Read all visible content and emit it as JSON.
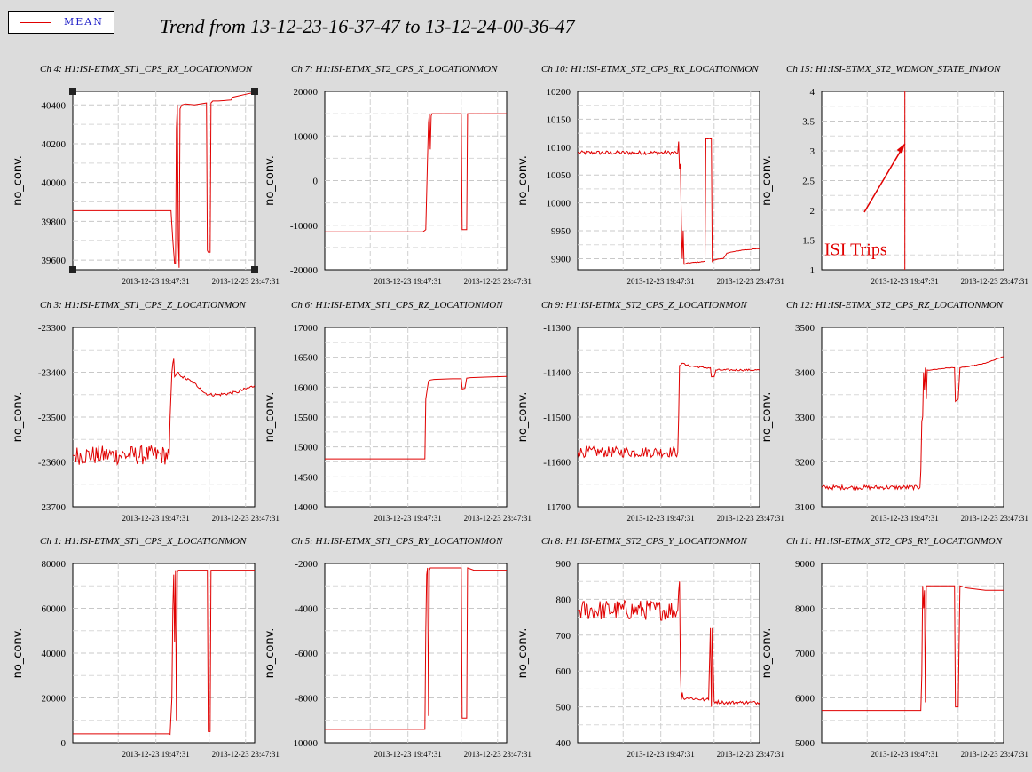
{
  "legend": {
    "label": "MEAN",
    "color": "#e00000"
  },
  "title": "Trend from 13-12-23-16-37-47 to 13-12-24-00-36-47",
  "ylabel": "no_conv.",
  "x_ticks": [
    "2013-12-23 19:47:31",
    "2013-12-23 23:47:31"
  ],
  "annotation": {
    "text": "ISI Trips",
    "chart": 3
  },
  "chart_data": [
    {
      "type": "line",
      "title": "Ch 4: H1:ISI-ETMX_ST1_CPS_RX_LOCATIONMON",
      "ylabel": "no_conv.",
      "ylim": [
        39550,
        40470
      ],
      "yticks": [
        39600,
        39800,
        40000,
        40200,
        40400
      ],
      "xticks": [
        "2013-12-23 19:47:31",
        "2013-12-23 23:47:31"
      ],
      "series": [
        {
          "color": "#e00000",
          "noise": 0,
          "x": [
            0,
            0.53,
            0.54,
            0.55,
            0.56,
            0.565,
            0.57,
            0.575,
            0.58,
            0.585,
            0.59,
            0.6,
            0.62,
            0.67,
            0.7,
            0.735,
            0.74,
            0.745,
            0.755,
            0.76,
            0.765,
            0.77,
            0.8,
            0.87,
            0.88,
            0.95,
            1
          ],
          "y": [
            39855,
            39855,
            39855,
            39700,
            39580,
            39580,
            40280,
            40400,
            39700,
            39560,
            40380,
            40400,
            40405,
            40400,
            40405,
            40410,
            39650,
            39640,
            39640,
            40410,
            40415,
            40420,
            40420,
            40425,
            40440,
            40455,
            40465
          ]
        }
      ]
    },
    {
      "type": "line",
      "title": "Ch 7: H1:ISI-ETMX_ST2_CPS_X_LOCATIONMON",
      "ylabel": "no_conv.",
      "ylim": [
        -20000,
        20000
      ],
      "yticks": [
        -20000,
        -10000,
        0,
        10000,
        20000
      ],
      "xticks": [
        "2013-12-23 19:47:31",
        "2013-12-23 23:47:31"
      ],
      "series": [
        {
          "color": "#e00000",
          "noise": 0,
          "x": [
            0,
            0.54,
            0.555,
            0.565,
            0.57,
            0.575,
            0.58,
            0.585,
            0.59,
            0.6,
            0.7,
            0.75,
            0.755,
            0.78,
            0.785,
            0.8,
            0.9,
            1
          ],
          "y": [
            -11500,
            -11500,
            -11000,
            5000,
            13000,
            15000,
            7000,
            14500,
            15000,
            15000,
            15000,
            15000,
            -11000,
            -11000,
            15000,
            15000,
            15000,
            15000
          ]
        }
      ]
    },
    {
      "type": "line",
      "title": "Ch 10: H1:ISI-ETMX_ST2_CPS_RX_LOCATIONMON",
      "ylabel": "no_conv.",
      "ylim": [
        9880,
        10200
      ],
      "yticks": [
        9900,
        9950,
        10000,
        10050,
        10100,
        10150,
        10200
      ],
      "xticks": [
        "2013-12-23 19:47:31",
        "2013-12-23 23:47:31"
      ],
      "series": [
        {
          "color": "#e00000",
          "noise": 1.5,
          "x": [
            0,
            0.55,
            0.555,
            0.56,
            0.565,
            0.57,
            0.575,
            0.58,
            0.585,
            0.59,
            0.6,
            0.7,
            0.705,
            0.71,
            0.735,
            0.74,
            0.75,
            0.8,
            0.82,
            0.85,
            0.9,
            1
          ],
          "y": [
            10090,
            10090,
            10110,
            10060,
            10070,
            9960,
            9900,
            9950,
            9890,
            9890,
            9892,
            9895,
            10115,
            10115,
            10115,
            9895,
            9898,
            9900,
            9910,
            9912,
            9915,
            9918
          ]
        }
      ]
    },
    {
      "type": "line",
      "title": "Ch 15: H1:ISI-ETMX_ST2_WDMON_STATE_INMON",
      "ylabel": "no_conv.",
      "ylim": [
        1,
        4
      ],
      "yticks": [
        1,
        1.5,
        2,
        2.5,
        3,
        3.5,
        4
      ],
      "xticks": [
        "2013-12-23 19:47:31",
        "2013-12-23 23:47:31"
      ],
      "series": [
        {
          "color": "#e00000",
          "noise": 0,
          "x": [
            0.457,
            0.457
          ],
          "y": [
            1,
            4
          ]
        }
      ]
    },
    {
      "type": "line",
      "title": "Ch 3: H1:ISI-ETMX_ST1_CPS_Z_LOCATIONMON",
      "ylabel": "no_conv.",
      "ylim": [
        -23700,
        -23300
      ],
      "yticks": [
        -23700,
        -23600,
        -23500,
        -23400,
        -23300
      ],
      "xticks": [
        "2013-12-23 19:47:31",
        "2013-12-23 23:47:31"
      ],
      "series": [
        {
          "color": "#e00000",
          "noise": 9,
          "x": [
            0,
            0.53,
            0.535,
            0.55,
            0.555,
            0.56,
            0.58,
            0.6,
            0.65,
            0.7,
            0.72,
            0.75,
            0.8,
            0.9,
            1
          ],
          "y": [
            -23585,
            -23585,
            -23500,
            -23380,
            -23370,
            -23410,
            -23400,
            -23410,
            -23420,
            -23435,
            -23445,
            -23450,
            -23450,
            -23445,
            -23430
          ]
        }
      ]
    },
    {
      "type": "line",
      "title": "Ch 6: H1:ISI-ETMX_ST1_CPS_RZ_LOCATIONMON",
      "ylabel": "no_conv.",
      "ylim": [
        14000,
        17000
      ],
      "yticks": [
        14000,
        14500,
        15000,
        15500,
        16000,
        16500,
        17000
      ],
      "xticks": [
        "2013-12-23 19:47:31",
        "2013-12-23 23:47:31"
      ],
      "series": [
        {
          "color": "#e00000",
          "noise": 0,
          "x": [
            0,
            0.54,
            0.55,
            0.555,
            0.56,
            0.565,
            0.57,
            0.58,
            0.6,
            0.7,
            0.75,
            0.755,
            0.77,
            0.78,
            0.8,
            0.9,
            1
          ],
          "y": [
            14800,
            14800,
            14800,
            15800,
            15900,
            16000,
            16100,
            16120,
            16130,
            16140,
            16140,
            15970,
            15980,
            16150,
            16160,
            16170,
            16180
          ]
        }
      ]
    },
    {
      "type": "line",
      "title": "Ch 9: H1:ISI-ETMX_ST2_CPS_Z_LOCATIONMON",
      "ylabel": "no_conv.",
      "ylim": [
        -11700,
        -11300
      ],
      "yticks": [
        -11700,
        -11600,
        -11500,
        -11400,
        -11300
      ],
      "xticks": [
        "2013-12-23 19:47:31",
        "2013-12-23 23:47:31"
      ],
      "series": [
        {
          "color": "#e00000",
          "noise": 5,
          "x": [
            0,
            0.55,
            0.555,
            0.56,
            0.58,
            0.6,
            0.7,
            0.73,
            0.735,
            0.75,
            0.76,
            0.8,
            0.9,
            1
          ],
          "y": [
            -11578,
            -11578,
            -11500,
            -11385,
            -11380,
            -11385,
            -11390,
            -11390,
            -11410,
            -11410,
            -11395,
            -11395,
            -11395,
            -11395
          ]
        }
      ]
    },
    {
      "type": "line",
      "title": "Ch 12: H1:ISI-ETMX_ST2_CPS_RZ_LOCATIONMON",
      "ylabel": "no_conv.",
      "ylim": [
        3100,
        3500
      ],
      "yticks": [
        3100,
        3200,
        3300,
        3400,
        3500
      ],
      "xticks": [
        "2013-12-23 19:47:31",
        "2013-12-23 23:47:31"
      ],
      "series": [
        {
          "color": "#e00000",
          "noise": 2,
          "x": [
            0,
            0.54,
            0.545,
            0.55,
            0.555,
            0.56,
            0.565,
            0.57,
            0.575,
            0.58,
            0.6,
            0.7,
            0.73,
            0.735,
            0.75,
            0.76,
            0.8,
            0.9,
            1
          ],
          "y": [
            3143,
            3143,
            3180,
            3290,
            3300,
            3400,
            3360,
            3410,
            3340,
            3405,
            3405,
            3410,
            3410,
            3335,
            3340,
            3410,
            3412,
            3420,
            3435
          ]
        }
      ]
    },
    {
      "type": "line",
      "title": "Ch 1: H1:ISI-ETMX_ST1_CPS_X_LOCATIONMON",
      "ylabel": "no_conv.",
      "ylim": [
        0,
        80000
      ],
      "yticks": [
        0,
        20000,
        40000,
        60000,
        80000
      ],
      "xticks": [
        "2013-12-23 19:47:31",
        "2013-12-23 23:47:31"
      ],
      "series": [
        {
          "color": "#e00000",
          "noise": 0,
          "x": [
            0,
            0.53,
            0.535,
            0.545,
            0.55,
            0.555,
            0.56,
            0.565,
            0.57,
            0.575,
            0.58,
            0.59,
            0.7,
            0.74,
            0.745,
            0.755,
            0.76,
            0.765,
            0.8,
            0.9,
            1
          ],
          "y": [
            4000,
            4000,
            3800,
            20000,
            60000,
            75000,
            45000,
            77000,
            10000,
            76000,
            77000,
            77000,
            77000,
            77000,
            5000,
            5000,
            77000,
            77000,
            77000,
            77000,
            77000
          ]
        }
      ]
    },
    {
      "type": "line",
      "title": "Ch 5: H1:ISI-ETMX_ST1_CPS_RY_LOCATIONMON",
      "ylabel": "no_conv.",
      "ylim": [
        -10000,
        -2000
      ],
      "yticks": [
        -10000,
        -8000,
        -6000,
        -4000,
        -2000
      ],
      "xticks": [
        "2013-12-23 19:47:31",
        "2013-12-23 23:47:31"
      ],
      "series": [
        {
          "color": "#e00000",
          "noise": 0,
          "x": [
            0,
            0.54,
            0.55,
            0.555,
            0.56,
            0.565,
            0.57,
            0.575,
            0.58,
            0.6,
            0.7,
            0.75,
            0.755,
            0.78,
            0.785,
            0.82,
            0.9,
            1
          ],
          "y": [
            -9400,
            -9400,
            -9400,
            -5000,
            -2500,
            -2200,
            -8800,
            -2300,
            -2200,
            -2200,
            -2200,
            -2200,
            -8900,
            -8900,
            -2200,
            -2300,
            -2300,
            -2300
          ]
        }
      ]
    },
    {
      "type": "line",
      "title": "Ch 8: H1:ISI-ETMX_ST2_CPS_Y_LOCATIONMON",
      "ylabel": "no_conv.",
      "ylim": [
        400,
        900
      ],
      "yticks": [
        400,
        500,
        600,
        700,
        800,
        900
      ],
      "xticks": [
        "2013-12-23 19:47:31",
        "2013-12-23 23:47:31"
      ],
      "series": [
        {
          "color": "#e00000",
          "noise": 12,
          "x": [
            0,
            0.55,
            0.56,
            0.565,
            0.57,
            0.575,
            0.58,
            0.6,
            0.7,
            0.72,
            0.73,
            0.735,
            0.74,
            0.75,
            0.8,
            0.9,
            1
          ],
          "y": [
            770,
            770,
            850,
            600,
            520,
            540,
            525,
            525,
            520,
            520,
            720,
            500,
            720,
            515,
            512,
            512,
            512
          ]
        }
      ]
    },
    {
      "type": "line",
      "title": "Ch 11: H1:ISI-ETMX_ST2_CPS_RY_LOCATIONMON",
      "ylabel": "no_conv.",
      "ylim": [
        5000,
        9000
      ],
      "yticks": [
        5000,
        6000,
        7000,
        8000,
        9000
      ],
      "xticks": [
        "2013-12-23 19:47:31",
        "2013-12-23 23:47:31"
      ],
      "series": [
        {
          "color": "#e00000",
          "noise": 0,
          "x": [
            0,
            0.54,
            0.545,
            0.55,
            0.555,
            0.56,
            0.565,
            0.57,
            0.575,
            0.58,
            0.6,
            0.7,
            0.73,
            0.735,
            0.75,
            0.76,
            0.8,
            0.9,
            1
          ],
          "y": [
            5720,
            5720,
            5720,
            6500,
            8500,
            8000,
            8400,
            5900,
            8500,
            8500,
            8500,
            8500,
            8500,
            5800,
            5800,
            8500,
            8450,
            8400,
            8400
          ]
        }
      ]
    }
  ]
}
